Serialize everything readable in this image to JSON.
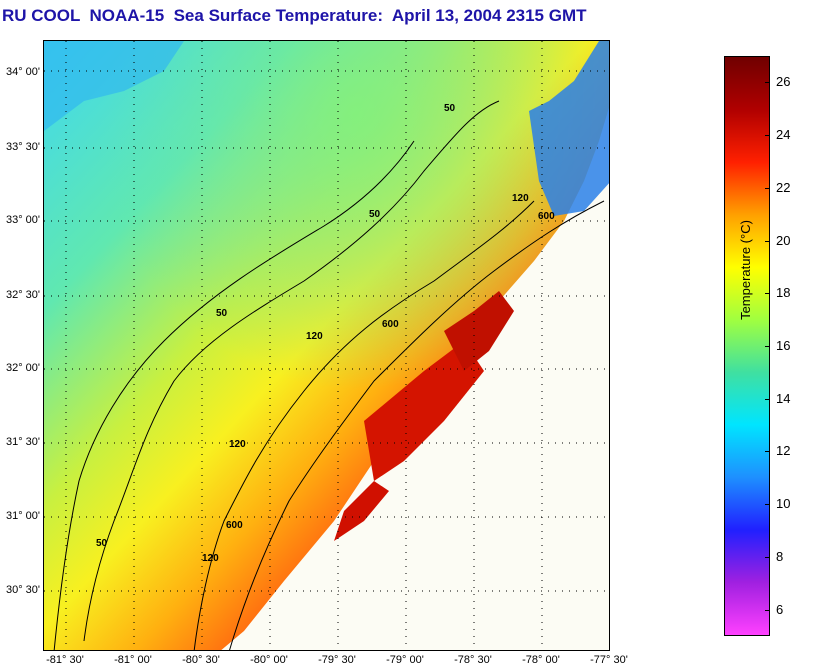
{
  "title": "RU COOL  NOAA-15  Sea Surface Temperature:  April 13, 2004 2315 GMT",
  "latitude_labels": [
    "34° 00'",
    "33° 30'",
    "33° 00'",
    "32° 30'",
    "32° 00'",
    "31° 30'",
    "31° 00'",
    "30° 30'"
  ],
  "longitude_labels": [
    "-81° 30'",
    "-81° 00'",
    "-80° 30'",
    "-80° 00'",
    "-79° 30'",
    "-79° 00'",
    "-78° 30'",
    "-78° 00'",
    "-77° 30'"
  ],
  "isobath_labels": [
    "50",
    "50",
    "50",
    "50",
    "120",
    "120",
    "120",
    "120",
    "600",
    "600",
    "600"
  ],
  "colorbar": {
    "label": "Temperature (°C)",
    "ticks": [
      "26",
      "24",
      "22",
      "20",
      "18",
      "16",
      "14",
      "12",
      "10",
      "8",
      "6"
    ],
    "range": [
      5,
      27
    ],
    "colors": [
      "#ff40ff",
      "#a020e0",
      "#2020ff",
      "#1e90ff",
      "#00e5ff",
      "#40e0a0",
      "#a0ff40",
      "#ffff00",
      "#ffa000",
      "#ff2000",
      "#b00000",
      "#700000"
    ]
  },
  "colors": {
    "title": "#1e14a8",
    "land": "#f8f8f8",
    "cloud": "#fcfcf4"
  }
}
